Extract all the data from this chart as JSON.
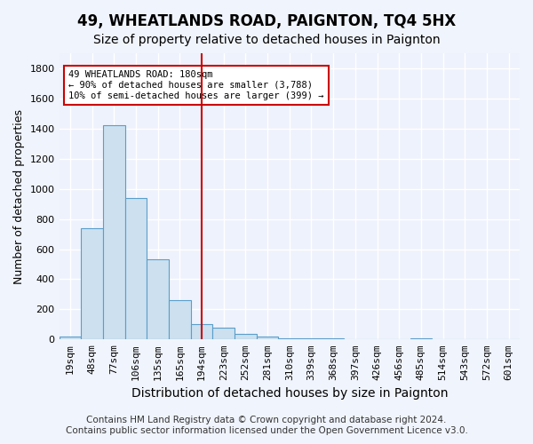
{
  "title": "49, WHEATLANDS ROAD, PAIGNTON, TQ4 5HX",
  "subtitle": "Size of property relative to detached houses in Paignton",
  "xlabel": "Distribution of detached houses by size in Paignton",
  "ylabel": "Number of detached properties",
  "footer_line1": "Contains HM Land Registry data © Crown copyright and database right 2024.",
  "footer_line2": "Contains public sector information licensed under the Open Government Licence v3.0.",
  "bin_labels": [
    "19sqm",
    "48sqm",
    "77sqm",
    "106sqm",
    "135sqm",
    "165sqm",
    "194sqm",
    "223sqm",
    "252sqm",
    "281sqm",
    "310sqm",
    "339sqm",
    "368sqm",
    "397sqm",
    "426sqm",
    "456sqm",
    "485sqm",
    "514sqm",
    "543sqm",
    "572sqm",
    "601sqm"
  ],
  "bar_values": [
    20,
    740,
    1420,
    940,
    530,
    260,
    100,
    80,
    35,
    20,
    10,
    5,
    5,
    0,
    0,
    0,
    5,
    0,
    0,
    0,
    0
  ],
  "bar_color": "#cce0f0",
  "bar_edge_color": "#5a9ec9",
  "vline_x_index": 6.0,
  "vline_color": "#cc0000",
  "annotation_text": "49 WHEATLANDS ROAD: 180sqm\n← 90% of detached houses are smaller (3,788)\n10% of semi-detached houses are larger (399) →",
  "annotation_box_color": "#ffffff",
  "annotation_box_edge_color": "#cc0000",
  "ylim": [
    0,
    1900
  ],
  "yticks": [
    0,
    200,
    400,
    600,
    800,
    1000,
    1200,
    1400,
    1600,
    1800
  ],
  "bg_color": "#f0f4fc",
  "plot_bg_color": "#eef2fc",
  "grid_color": "#ffffff",
  "title_fontsize": 12,
  "subtitle_fontsize": 10,
  "xlabel_fontsize": 10,
  "ylabel_fontsize": 9,
  "tick_fontsize": 8,
  "footer_fontsize": 7.5,
  "annotation_fontsize": 7.5
}
